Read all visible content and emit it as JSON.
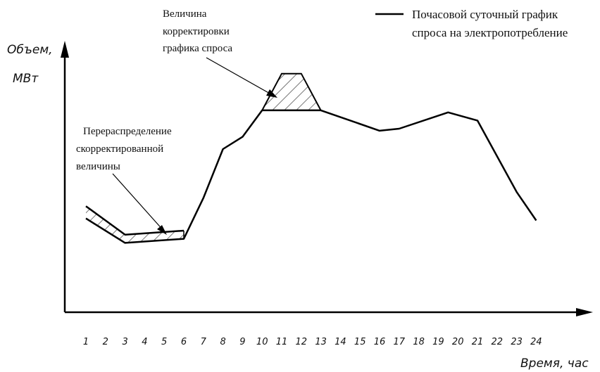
{
  "chart_data": {
    "type": "line",
    "ylabel_line1": "Объем,",
    "ylabel_line2": "МВт",
    "xlabel": "Время, час",
    "categories": [
      "1",
      "2",
      "3",
      "4",
      "5",
      "6",
      "7",
      "8",
      "9",
      "10",
      "11",
      "12",
      "13",
      "14",
      "15",
      "16",
      "17",
      "18",
      "19",
      "20",
      "21",
      "22",
      "23",
      "24"
    ],
    "series": [
      {
        "name": "Почасовой суточный график спроса на электропотребление",
        "x": [
          1,
          3,
          6,
          7,
          8,
          9,
          10,
          13,
          16,
          17,
          19.5,
          21,
          23,
          24
        ],
        "values": [
          0.46,
          0.34,
          0.36,
          0.56,
          0.8,
          0.86,
          0.99,
          0.99,
          0.89,
          0.9,
          0.98,
          0.94,
          0.59,
          0.45
        ]
      }
    ],
    "adjusted_peak": {
      "x": [
        10,
        11,
        12,
        13
      ],
      "values": [
        0.99,
        1.17,
        1.17,
        0.99
      ]
    },
    "redistributed_upper": {
      "x": [
        1,
        3,
        6
      ],
      "values": [
        0.52,
        0.38,
        0.4
      ]
    },
    "legend_line1": "Почасовой суточный график",
    "legend_line2": "спроса на электропотребление",
    "annotation_top": [
      "Величина",
      "корректировки",
      "графика спроса"
    ],
    "annotation_left": [
      "Перераспределение",
      "скорректированной",
      "величины"
    ],
    "colors": {
      "line": "#000000",
      "background": "#ffffff"
    }
  }
}
